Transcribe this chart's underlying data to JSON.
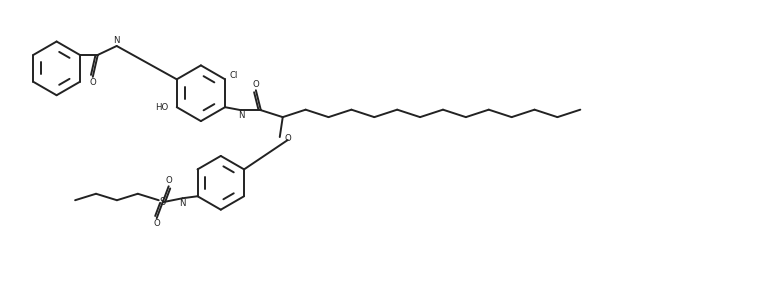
{
  "bg_color": "#ffffff",
  "line_color": "#222222",
  "line_width": 1.4,
  "fig_width": 7.7,
  "fig_height": 2.88,
  "dpi": 100,
  "xlim": [
    0,
    77
  ],
  "ylim": [
    0,
    28.8
  ]
}
